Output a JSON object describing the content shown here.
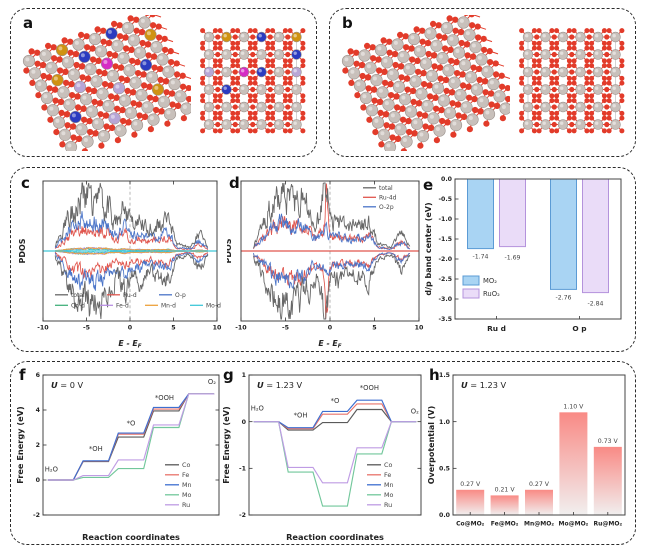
{
  "panels": {
    "a": {
      "letter": "a",
      "type": "crystal-structure",
      "doped": true,
      "views": [
        "tilted-3d-lattice",
        "top-view-lattice"
      ],
      "atom_colors": {
        "oxygen": "#e23b2a",
        "metal": "#c8c0bb",
        "dopant_gold": "#cf9212",
        "dopant_blue": "#2b3bc0",
        "dopant_magenta": "#d62bc4",
        "dopant_lavender": "#b7a6d6"
      },
      "top_view_dopants": [
        [
          0,
          1,
          "gold"
        ],
        [
          0,
          3,
          "blue"
        ],
        [
          0,
          5,
          "gold"
        ],
        [
          1,
          5,
          "blue"
        ],
        [
          2,
          0,
          "lavender"
        ],
        [
          2,
          2,
          "magenta"
        ],
        [
          2,
          3,
          "blue"
        ],
        [
          2,
          5,
          "lavender"
        ],
        [
          3,
          1,
          "blue"
        ]
      ],
      "side_view_dopants": [
        [
          0,
          2,
          "gold"
        ],
        [
          0,
          5,
          "blue"
        ],
        [
          1,
          3,
          "blue"
        ],
        [
          1,
          7,
          "gold"
        ],
        [
          2,
          1,
          "gold"
        ],
        [
          2,
          4,
          "magenta"
        ],
        [
          3,
          2,
          "lavender"
        ],
        [
          3,
          6,
          "blue"
        ],
        [
          4,
          4,
          "lavender"
        ],
        [
          5,
          1,
          "blue"
        ],
        [
          5,
          6,
          "gold"
        ],
        [
          6,
          3,
          "lavender"
        ]
      ]
    },
    "b": {
      "letter": "b",
      "type": "crystal-structure",
      "doped": false,
      "views": [
        "tilted-3d-lattice",
        "top-view-lattice"
      ],
      "atom_colors": {
        "oxygen": "#e23b2a",
        "metal": "#c8c0bb"
      },
      "top_view_dopants": [],
      "side_view_dopants": []
    },
    "c": {
      "letter": "c"
    },
    "d": {
      "letter": "d"
    },
    "e": {
      "letter": "e"
    },
    "f": {
      "letter": "f"
    },
    "g": {
      "letter": "g"
    },
    "h": {
      "letter": "h"
    }
  },
  "chart_data": [
    {
      "id": "c",
      "type": "line",
      "subtype": "pdos",
      "xlabel": "E - E_F",
      "ylabel": "PDOS",
      "xlim": [
        -10,
        10
      ],
      "xticks": [
        -10,
        -5,
        0,
        5,
        10
      ],
      "fermi_level": 0,
      "baseline_color": "#3fc8d8",
      "note": "Spin-up/spin-down projected density of states; dense unlabeled spectra spanning about -8.5 to 9 eV",
      "series": [
        {
          "name": "total",
          "color": "#686868",
          "scale": 1.0,
          "seed": 11
        },
        {
          "name": "Ru-d",
          "color": "#e0564e",
          "scale": 0.4,
          "seed": 23
        },
        {
          "name": "O-p",
          "color": "#4a74c8",
          "scale": 0.58,
          "seed": 37
        },
        {
          "name": "Co-d",
          "color": "#43b07c",
          "scale": 0.05,
          "seed": 41
        },
        {
          "name": "Fe-d",
          "color": "#b88fe2",
          "scale": 0.05,
          "seed": 53
        },
        {
          "name": "Mn-d",
          "color": "#eda23c",
          "scale": 0.05,
          "seed": 61
        },
        {
          "name": "Mo-d",
          "color": "#3fc8d8",
          "scale": 0.03,
          "seed": 71
        }
      ],
      "legend_rows": [
        [
          "total",
          "Ru-d",
          "O-p"
        ],
        [
          "Co-d",
          "Fe-d",
          "Mn-d",
          "Mo-d"
        ]
      ],
      "legend_position": "bottom-inside"
    },
    {
      "id": "d",
      "type": "line",
      "subtype": "pdos",
      "xlabel": "E - E_F",
      "ylabel": "PDOS",
      "xlim": [
        -10,
        10
      ],
      "xticks": [
        -10,
        -5,
        0,
        5,
        10
      ],
      "fermi_level": 0,
      "baseline_color": "#e0564e",
      "note": "Spin-resolved PDOS of pure RuO2 with a sharp Ru-4d peak just below the Fermi level",
      "series": [
        {
          "name": "total",
          "color": "#686868",
          "scale": 1.0,
          "seed": 13,
          "spikes": [
            {
              "c": -0.5,
              "w": 0.3,
              "a": 0.5
            }
          ]
        },
        {
          "name": "Ru-4d",
          "color": "#e0564e",
          "scale": 0.5,
          "seed": 29,
          "spikes": [
            {
              "c": -0.4,
              "w": 0.13,
              "a": 1.15
            }
          ]
        },
        {
          "name": "O-2p",
          "color": "#4a74c8",
          "scale": 0.52,
          "seed": 31
        }
      ],
      "legend_rows": [
        [
          "total"
        ],
        [
          "Ru-4d"
        ],
        [
          "O-2p"
        ]
      ],
      "legend_position": "top-right"
    },
    {
      "id": "e",
      "type": "bar",
      "grouped": true,
      "ylabel": "d/p band center (eV)",
      "categories": [
        "Ru d",
        "O p"
      ],
      "series": [
        {
          "name": "MO₂",
          "values": [
            -1.74,
            -2.76
          ],
          "fill": "#a9d4f3",
          "stroke": "#5b9bd5",
          "labels": [
            "-1.74",
            "-2.76"
          ]
        },
        {
          "name": "RuO₂",
          "values": [
            -1.69,
            -2.84
          ],
          "fill": "#eadcf8",
          "stroke": "#b493dc",
          "labels": [
            "-1.69",
            "-2.84"
          ]
        }
      ],
      "ylim": [
        -3.5,
        0
      ],
      "yticks": [
        0,
        -0.5,
        -1,
        -1.5,
        -2,
        -2.5,
        -3,
        -3.5
      ]
    },
    {
      "id": "f",
      "type": "line",
      "subtype": "steps",
      "title": "U = 0 V",
      "xlabel": "Reaction coordinates",
      "ylabel": "Free Energy (eV)",
      "states": [
        "H₂O",
        "*OH",
        "*O",
        "*OOH",
        "O₂"
      ],
      "ylim": [
        -2,
        6
      ],
      "yticks": [
        -2,
        0,
        2,
        4,
        6
      ],
      "series": [
        {
          "name": "Co",
          "color": "#5a5a5a",
          "values": [
            0,
            1.05,
            2.45,
            3.95,
            4.92
          ]
        },
        {
          "name": "Fe",
          "color": "#e8736b",
          "values": [
            0,
            1.08,
            2.62,
            4.05,
            4.92
          ]
        },
        {
          "name": "Mn",
          "color": "#3d6fd0",
          "values": [
            0,
            1.1,
            2.68,
            4.15,
            4.92
          ]
        },
        {
          "name": "Mo",
          "color": "#72c79b",
          "values": [
            0,
            0.15,
            0.65,
            3.0,
            4.92
          ]
        },
        {
          "name": "Ru",
          "color": "#bf9ce4",
          "values": [
            0,
            0.25,
            1.15,
            3.15,
            4.92
          ]
        }
      ],
      "annotations": [
        {
          "text": "H₂O",
          "x": 0.05,
          "y": 0.5,
          "anchor": "start"
        },
        {
          "text": "*OH",
          "x": 1.5,
          "y": 1.65
        },
        {
          "text": "*O",
          "x": 2.5,
          "y": 3.12
        },
        {
          "text": "*OOH",
          "x": 3.45,
          "y": 4.58
        },
        {
          "text": "O₂",
          "x": 4.8,
          "y": 5.5
        }
      ]
    },
    {
      "id": "g",
      "type": "line",
      "subtype": "steps",
      "title": "U = 1.23 V",
      "xlabel": "Reaction coordinates",
      "ylabel": "Free Energy (eV)",
      "states": [
        "H₂O",
        "*OH",
        "*O",
        "*OOH",
        "O₂"
      ],
      "ylim": [
        -2,
        1
      ],
      "yticks": [
        -2,
        -1,
        0,
        1
      ],
      "series": [
        {
          "name": "Co",
          "color": "#5a5a5a",
          "values": [
            0,
            -0.18,
            -0.02,
            0.26,
            0
          ]
        },
        {
          "name": "Fe",
          "color": "#e8736b",
          "values": [
            0,
            -0.15,
            0.16,
            0.38,
            0
          ]
        },
        {
          "name": "Mn",
          "color": "#3d6fd0",
          "values": [
            0,
            -0.13,
            0.22,
            0.46,
            0
          ]
        },
        {
          "name": "Mo",
          "color": "#72c79b",
          "values": [
            0,
            -1.08,
            -1.81,
            -0.69,
            0
          ]
        },
        {
          "name": "Ru",
          "color": "#bf9ce4",
          "values": [
            0,
            -0.98,
            -1.31,
            -0.56,
            0
          ]
        }
      ],
      "annotations": [
        {
          "text": "H₂O",
          "x": 0.05,
          "y": 0.24,
          "anchor": "start"
        },
        {
          "text": "*OH",
          "x": 1.5,
          "y": 0.09
        },
        {
          "text": "*O",
          "x": 2.5,
          "y": 0.4
        },
        {
          "text": "*OOH",
          "x": 3.5,
          "y": 0.68
        },
        {
          "text": "O₂",
          "x": 4.82,
          "y": 0.18
        }
      ]
    },
    {
      "id": "h",
      "type": "bar",
      "title": "U = 1.23 V",
      "ylabel": "Overpotential (V)",
      "categories": [
        "Co@MO₂",
        "Fe@MO₂",
        "Mn@MO₂",
        "Mo@MO₂",
        "Ru@MO₂"
      ],
      "values": [
        0.27,
        0.21,
        0.27,
        1.1,
        0.73
      ],
      "value_labels": [
        "0.27 V",
        "0.21 V",
        "0.27 V",
        "1.10 V",
        "0.73 V"
      ],
      "ylim": [
        0,
        1.5
      ],
      "yticks": [
        0,
        0.5,
        1,
        1.5
      ],
      "bar_color_top": "#f98a85",
      "bar_color_bottom": "#f1efef"
    }
  ]
}
